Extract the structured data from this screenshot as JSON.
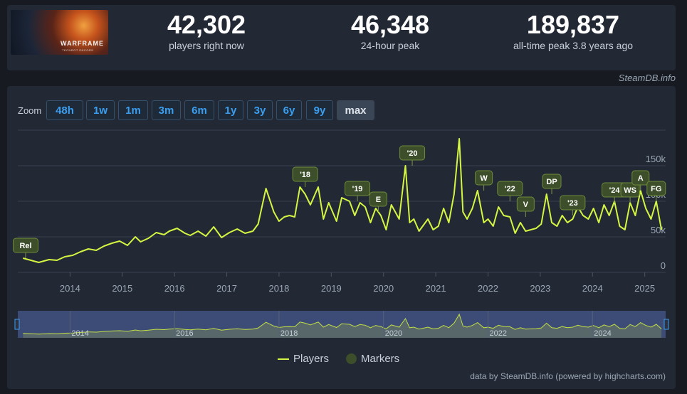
{
  "header": {
    "logo_title": "WARFRAME",
    "logo_subtitle": "TECHROT ENCORE",
    "stats": [
      {
        "value": "42,302",
        "label": "players right now"
      },
      {
        "value": "46,348",
        "label": "24-hour peak"
      },
      {
        "value": "189,837",
        "label": "all-time peak 3.8 years ago"
      }
    ],
    "credit": "SteamDB.info"
  },
  "zoom": {
    "label": "Zoom",
    "buttons": [
      "48h",
      "1w",
      "1m",
      "3m",
      "6m",
      "1y",
      "3y",
      "6y",
      "9y",
      "max"
    ],
    "active": "max"
  },
  "colors": {
    "line": "#d4f542",
    "marker": "#3d4f2a",
    "accent": "#3b9eef"
  },
  "chart_data": {
    "type": "line",
    "series": [
      {
        "name": "Players",
        "x": [
          2013.1,
          2013.25,
          2013.4,
          2013.6,
          2013.75,
          2013.9,
          2014.05,
          2014.2,
          2014.35,
          2014.5,
          2014.65,
          2014.8,
          2014.95,
          2015.1,
          2015.25,
          2015.35,
          2015.5,
          2015.65,
          2015.8,
          2015.9,
          2016.05,
          2016.2,
          2016.3,
          2016.45,
          2016.6,
          2016.75,
          2016.9,
          2017.05,
          2017.2,
          2017.35,
          2017.5,
          2017.6,
          2017.75,
          2017.9,
          2018.0,
          2018.1,
          2018.2,
          2018.3,
          2018.4,
          2018.5,
          2018.6,
          2018.75,
          2018.85,
          2018.95,
          2019.1,
          2019.2,
          2019.35,
          2019.45,
          2019.55,
          2019.65,
          2019.75,
          2019.85,
          2019.95,
          2020.05,
          2020.15,
          2020.3,
          2020.42,
          2020.5,
          2020.58,
          2020.68,
          2020.85,
          2020.95,
          2021.05,
          2021.15,
          2021.25,
          2021.35,
          2021.45,
          2021.52,
          2021.6,
          2021.7,
          2021.8,
          2021.92,
          2022.0,
          2022.1,
          2022.2,
          2022.3,
          2022.42,
          2022.52,
          2022.62,
          2022.72,
          2022.82,
          2022.92,
          2023.02,
          2023.12,
          2023.22,
          2023.32,
          2023.42,
          2023.52,
          2023.62,
          2023.72,
          2023.82,
          2023.92,
          2024.02,
          2024.12,
          2024.22,
          2024.32,
          2024.42,
          2024.52,
          2024.62,
          2024.72,
          2024.82,
          2024.92,
          2025.02,
          2025.12,
          2025.22,
          2025.32
        ],
        "y": [
          20,
          17,
          14,
          18,
          17,
          22,
          24,
          29,
          33,
          31,
          37,
          41,
          44,
          38,
          50,
          43,
          48,
          56,
          53,
          58,
          62,
          55,
          52,
          58,
          51,
          64,
          49,
          56,
          61,
          55,
          58,
          68,
          118,
          85,
          72,
          78,
          80,
          78,
          120,
          110,
          95,
          120,
          75,
          98,
          72,
          105,
          100,
          80,
          98,
          92,
          70,
          90,
          80,
          60,
          95,
          75,
          150,
          70,
          75,
          58,
          75,
          60,
          65,
          90,
          70,
          110,
          188,
          85,
          75,
          90,
          115,
          70,
          75,
          65,
          92,
          80,
          78,
          55,
          70,
          58,
          60,
          62,
          68,
          110,
          70,
          65,
          80,
          70,
          75,
          92,
          80,
          75,
          90,
          70,
          95,
          80,
          100,
          65,
          60,
          98,
          80,
          115,
          90,
          75,
          100,
          60
        ]
      }
    ],
    "x_ticks": [
      "2014",
      "2015",
      "2016",
      "2017",
      "2018",
      "2019",
      "2020",
      "2021",
      "2022",
      "2023",
      "2024",
      "2025"
    ],
    "y_ticks": [
      "0",
      "50k",
      "100k",
      "150k"
    ],
    "ylim": [
      0,
      200
    ],
    "markers": [
      {
        "label": "Rel",
        "x": 2013.15,
        "y": 20
      },
      {
        "label": "'18",
        "x": 2018.5,
        "y": 120
      },
      {
        "label": "'19",
        "x": 2019.5,
        "y": 100
      },
      {
        "label": "E",
        "x": 2019.9,
        "y": 85
      },
      {
        "label": "'20",
        "x": 2020.55,
        "y": 150
      },
      {
        "label": "W",
        "x": 2021.92,
        "y": 115
      },
      {
        "label": "'22",
        "x": 2022.42,
        "y": 100
      },
      {
        "label": "V",
        "x": 2022.72,
        "y": 78
      },
      {
        "label": "DP",
        "x": 2023.22,
        "y": 110
      },
      {
        "label": "'23",
        "x": 2023.62,
        "y": 80
      },
      {
        "label": "'24",
        "x": 2024.42,
        "y": 98
      },
      {
        "label": "WS",
        "x": 2024.72,
        "y": 98
      },
      {
        "label": "A",
        "x": 2024.92,
        "y": 115
      },
      {
        "label": "FG",
        "x": 2025.22,
        "y": 100
      }
    ],
    "navigator_ticks": [
      "2014",
      "2016",
      "2018",
      "2020",
      "2022",
      "2024"
    ],
    "legend": [
      {
        "label": "Players",
        "kind": "line"
      },
      {
        "label": "Markers",
        "kind": "marker"
      }
    ],
    "grid": true
  },
  "footer": {
    "credit": "data by SteamDB.info (powered by highcharts.com)"
  }
}
